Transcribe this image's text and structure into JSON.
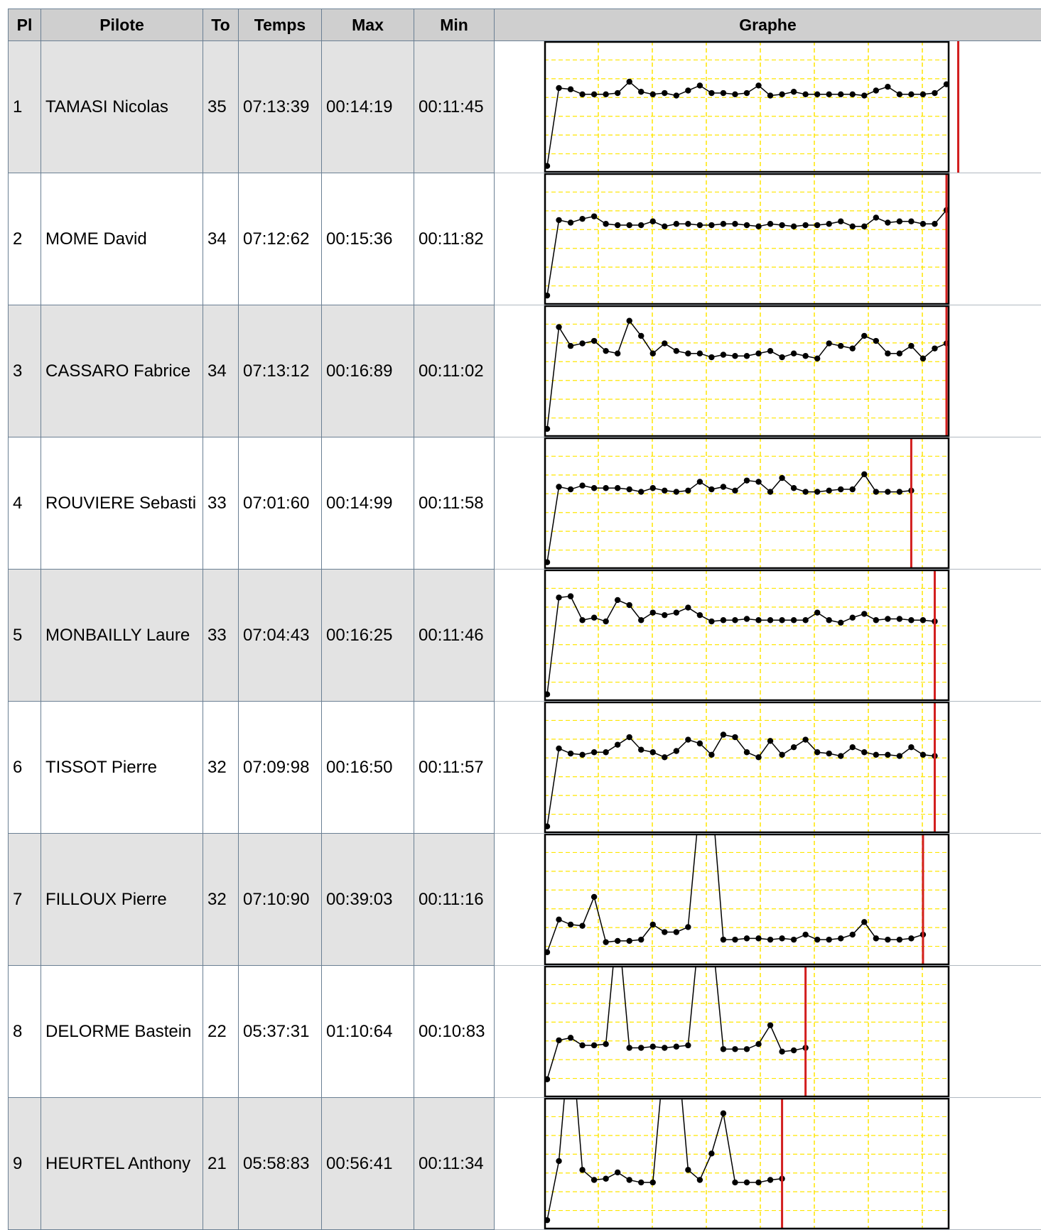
{
  "table": {
    "headers": {
      "place": "Pl",
      "pilot": "Pilote",
      "laps": "To",
      "time": "Temps",
      "max": "Max",
      "min": "Min",
      "graph": "Graphe"
    },
    "rows": [
      {
        "place": "1",
        "pilot": "TAMASI Nicolas",
        "laps": "35",
        "time": "07:13:39",
        "max": "00:14:19",
        "min": "00:11:45",
        "lap_values": [
          3,
          65,
          64,
          60,
          60,
          60,
          61,
          70,
          62,
          60,
          61,
          59,
          63,
          67,
          61,
          61,
          60,
          61,
          67,
          59,
          60,
          62,
          60,
          60,
          60,
          60,
          60,
          59,
          63,
          66,
          60,
          60,
          60,
          61,
          68,
          69
        ]
      },
      {
        "place": "2",
        "pilot": "MOME David",
        "laps": "34",
        "time": "07:12:62",
        "max": "00:15:36",
        "min": "00:11:82",
        "lap_values": [
          5,
          65,
          63,
          66,
          68,
          62,
          61,
          61,
          61,
          64,
          60,
          62,
          62,
          61,
          61,
          62,
          62,
          61,
          60,
          62,
          61,
          60,
          61,
          61,
          62,
          64,
          60,
          60,
          67,
          63,
          64,
          64,
          62,
          62,
          73
        ]
      },
      {
        "place": "3",
        "pilot": "CASSARO Fabrice",
        "laps": "34",
        "time": "07:13:12",
        "max": "00:16:89",
        "min": "00:11:02",
        "lap_values": [
          4,
          85,
          70,
          72,
          74,
          66,
          64,
          90,
          78,
          64,
          72,
          66,
          64,
          64,
          61,
          63,
          62,
          62,
          64,
          66,
          61,
          64,
          62,
          60,
          72,
          70,
          68,
          78,
          74,
          64,
          64,
          70,
          60,
          68,
          72
        ]
      },
      {
        "place": "4",
        "pilot": "ROUVIERE Sebastien",
        "pilot_display": "ROUVIERE Sebasti",
        "laps": "33",
        "time": "07:01:60",
        "max": "00:14:99",
        "min": "00:11:58",
        "lap_values": [
          3,
          63,
          61,
          64,
          62,
          62,
          62,
          61,
          59,
          62,
          60,
          59,
          60,
          67,
          61,
          63,
          60,
          68,
          67,
          59,
          70,
          62,
          59,
          59,
          60,
          61,
          61,
          73,
          59,
          59,
          59,
          60
        ]
      },
      {
        "place": "5",
        "pilot": "MONBAILLY Laure",
        "laps": "33",
        "time": "07:04:43",
        "max": "00:16:25",
        "min": "00:11:46",
        "lap_values": [
          3,
          80,
          81,
          62,
          64,
          61,
          78,
          74,
          62,
          68,
          66,
          68,
          72,
          66,
          61,
          62,
          62,
          63,
          62,
          62,
          62,
          62,
          62,
          68,
          62,
          60,
          64,
          67,
          62,
          63,
          63,
          62,
          62,
          61
        ]
      },
      {
        "place": "6",
        "pilot": "TISSOT Pierre",
        "laps": "32",
        "time": "07:09:98",
        "max": "00:16:50",
        "min": "00:11:57",
        "lap_values": [
          3,
          65,
          61,
          60,
          62,
          62,
          68,
          74,
          64,
          62,
          58,
          63,
          72,
          69,
          60,
          76,
          74,
          62,
          58,
          71,
          60,
          66,
          72,
          62,
          61,
          59,
          66,
          62,
          60,
          60,
          59,
          66,
          60,
          59
        ]
      },
      {
        "place": "7",
        "pilot": "FILLOUX Pierre",
        "laps": "32",
        "time": "07:10:90",
        "max": "00:39:03",
        "min": "00:11:16",
        "lap_values": [
          8,
          34,
          30,
          29,
          52,
          16,
          17,
          17,
          18,
          30,
          24,
          24,
          28,
          128,
          135,
          18,
          18,
          19,
          19,
          18,
          19,
          18,
          22,
          18,
          18,
          19,
          22,
          32,
          19,
          18,
          18,
          19,
          22
        ]
      },
      {
        "place": "8",
        "pilot": "DELORME Bastein",
        "laps": "22",
        "time": "05:37:31",
        "max": "01:10:64",
        "min": "00:10:83",
        "lap_values": [
          12,
          43,
          45,
          39,
          39,
          40,
          140,
          37,
          37,
          38,
          37,
          38,
          39,
          135,
          132,
          36,
          36,
          36,
          40,
          55,
          34,
          35,
          37
        ]
      },
      {
        "place": "9",
        "pilot": "HEURTEL Anthony",
        "laps": "21",
        "time": "05:58:83",
        "max": "00:56:41",
        "min": "00:11:34",
        "lap_values": [
          5,
          52,
          160,
          45,
          37,
          38,
          43,
          37,
          35,
          35,
          140,
          152,
          45,
          37,
          58,
          90,
          35,
          35,
          35,
          37,
          38
        ]
      }
    ]
  },
  "graph_style": {
    "line_color": "#000000",
    "grid_color": "#ffe600",
    "marker_line_color": "#d21e1e",
    "frame_color": "#000000"
  }
}
